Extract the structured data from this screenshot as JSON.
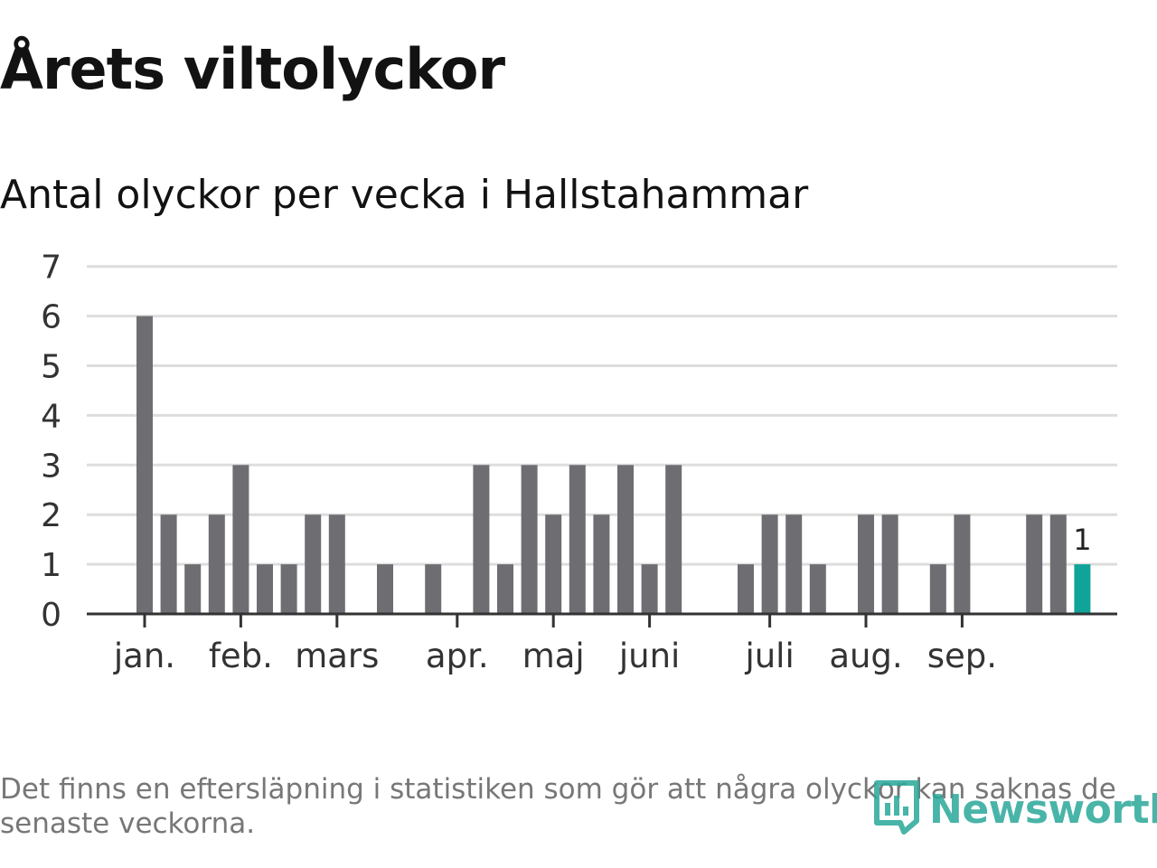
{
  "header": {
    "title": "Årets viltolyckor",
    "subtitle": "Antal olyckor per vecka i Hallstahammar"
  },
  "footer": {
    "note": "Det finns en eftersläpning i statistiken som gör att några olyckor kan saknas de senaste veckorna.",
    "brand": "Newsworthy",
    "brand_icon": "newsworthy-logo-icon"
  },
  "colors": {
    "bar": "#6e6d72",
    "highlight": "#0fa39a",
    "grid": "#dddddd",
    "axis": "#333333"
  },
  "chart_data": {
    "type": "bar",
    "title": "Antal olyckor per vecka i Hallstahammar",
    "xlabel": "",
    "ylabel": "",
    "ylim": [
      0,
      7
    ],
    "yticks": [
      0,
      1,
      2,
      3,
      4,
      5,
      6,
      7
    ],
    "grid": true,
    "weeks": [
      1,
      2,
      3,
      4,
      5,
      6,
      7,
      8,
      9,
      10,
      11,
      12,
      13,
      14,
      15,
      16,
      17,
      18,
      19,
      20,
      21,
      22,
      23,
      24,
      25,
      26,
      27,
      28,
      29,
      30,
      31,
      32,
      33,
      34,
      35,
      36,
      37,
      38,
      39,
      40
    ],
    "values": [
      6,
      2,
      1,
      2,
      3,
      1,
      1,
      2,
      2,
      0,
      1,
      0,
      1,
      0,
      3,
      1,
      3,
      2,
      3,
      2,
      3,
      1,
      3,
      0,
      0,
      1,
      2,
      2,
      1,
      0,
      2,
      2,
      0,
      1,
      2,
      0,
      0,
      2,
      2,
      1
    ],
    "highlight_index": 39,
    "highlight_label": "1",
    "month_labels": [
      {
        "label": "jan.",
        "week": 1
      },
      {
        "label": "feb.",
        "week": 5
      },
      {
        "label": "mars",
        "week": 9
      },
      {
        "label": "apr.",
        "week": 14
      },
      {
        "label": "maj",
        "week": 18
      },
      {
        "label": "juni",
        "week": 22
      },
      {
        "label": "juli",
        "week": 27
      },
      {
        "label": "aug.",
        "week": 31
      },
      {
        "label": "sep.",
        "week": 35
      }
    ]
  }
}
